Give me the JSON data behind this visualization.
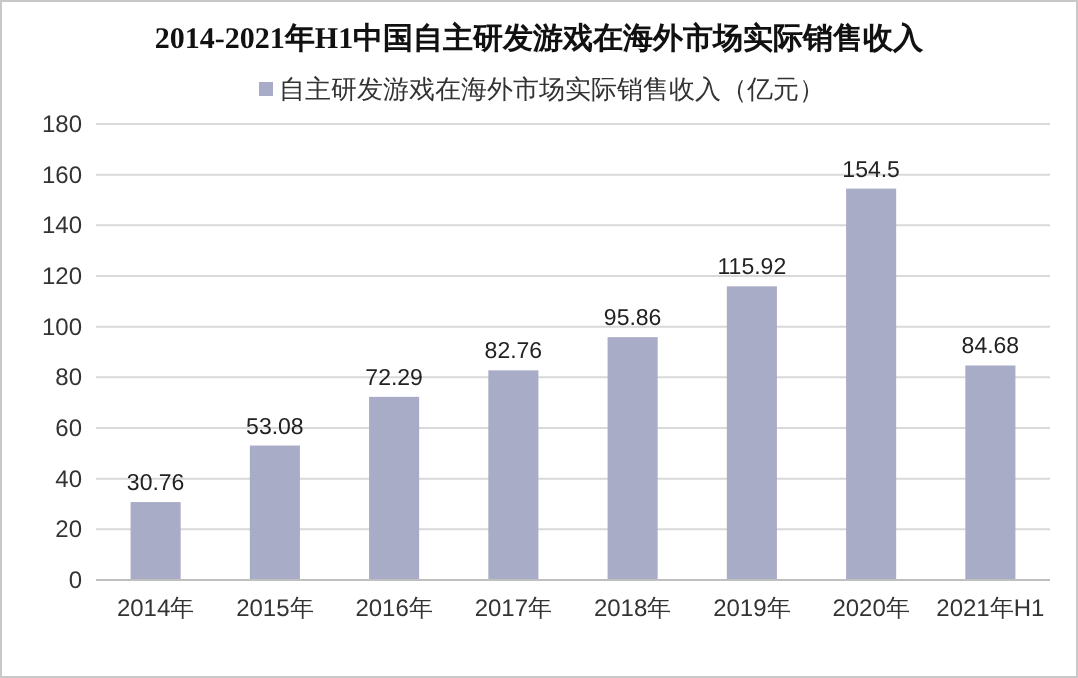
{
  "chart_data": {
    "type": "bar",
    "title": "2014-2021年H1中国自主研发游戏在海外市场实际销售收入",
    "categories": [
      "2014年",
      "2015年",
      "2016年",
      "2017年",
      "2018年",
      "2019年",
      "2020年",
      "2021年H1"
    ],
    "series": [
      {
        "name": "自主研发游戏在海外市场实际销售收入（亿元）",
        "color": "#a9acc6",
        "values": [
          30.76,
          53.08,
          72.29,
          82.76,
          95.86,
          115.92,
          154.5,
          84.68
        ]
      }
    ],
    "ylim": [
      0,
      180
    ],
    "yticks": [
      0,
      20,
      40,
      60,
      80,
      100,
      120,
      140,
      160,
      180
    ],
    "grid": "y",
    "legend": "top",
    "data_labels": true
  }
}
